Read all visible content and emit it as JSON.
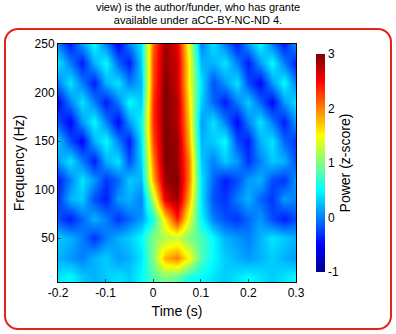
{
  "chart_data": {
    "type": "heatmap",
    "annotations": [
      "view) is the author/funder, who has grante",
      "available under aCC-BY-NC-ND 4."
    ],
    "x_label": "Time (s)",
    "y_label": "Frequency (Hz)",
    "color": "jet",
    "x": [
      -0.2,
      -0.175,
      -0.15,
      -0.125,
      -0.1,
      -0.075,
      -0.05,
      -0.025,
      0,
      0.025,
      0.05,
      0.075,
      0.1,
      0.125,
      0.15,
      0.175,
      0.2,
      0.225,
      0.25,
      0.275,
      0.3
    ],
    "y": [
      10,
      30,
      50,
      70,
      90,
      110,
      130,
      150,
      170,
      190,
      210,
      230,
      250
    ],
    "z": [
      [
        0.4,
        0.5,
        0.3,
        0.2,
        0.3,
        0.4,
        0.3,
        0.5,
        0.8,
        1.0,
        0.9,
        0.6,
        0.5,
        0.4,
        0.3,
        0.4,
        0.5,
        0.4,
        0.3,
        0.4,
        0.5
      ],
      [
        0.2,
        0.1,
        0.0,
        0.2,
        0.3,
        0.1,
        0.2,
        0.4,
        1.0,
        1.8,
        2.0,
        1.5,
        0.8,
        0.5,
        0.3,
        0.2,
        0.1,
        0.2,
        0.3,
        0.2,
        0.1
      ],
      [
        0.3,
        0.2,
        0.0,
        -0.3,
        0.0,
        0.2,
        0.3,
        0.5,
        1.0,
        1.2,
        1.3,
        1.0,
        0.8,
        0.5,
        0.2,
        0.1,
        0.0,
        0.2,
        0.4,
        0.3,
        0.2
      ],
      [
        -0.2,
        -0.4,
        -0.1,
        0.2,
        0.0,
        -0.3,
        -0.1,
        0.1,
        0.6,
        1.6,
        2.4,
        1.4,
        0.5,
        0.0,
        -0.2,
        -0.3,
        -0.1,
        0.1,
        -0.2,
        -0.4,
        -0.2
      ],
      [
        -0.3,
        0.2,
        0.3,
        -0.2,
        -0.4,
        0.1,
        0.2,
        0.0,
        1.2,
        2.6,
        2.9,
        1.8,
        0.4,
        -0.2,
        -0.3,
        0.0,
        0.2,
        -0.1,
        -0.3,
        0.1,
        0.0
      ],
      [
        -0.4,
        0.0,
        0.4,
        0.1,
        -0.3,
        -0.1,
        0.3,
        0.2,
        1.8,
        2.9,
        3.0,
        2.0,
        0.4,
        -0.1,
        -0.4,
        -0.2,
        0.1,
        0.2,
        -0.2,
        -0.3,
        0.1
      ],
      [
        0.1,
        0.4,
        0.0,
        -0.4,
        0.2,
        0.4,
        -0.2,
        0.3,
        2.0,
        3.0,
        2.9,
        2.0,
        0.3,
        0.0,
        0.3,
        0.1,
        -0.3,
        0.0,
        0.3,
        0.2,
        -0.2
      ],
      [
        0.3,
        -0.2,
        -0.5,
        0.2,
        0.5,
        0.0,
        -0.4,
        0.4,
        2.2,
        3.0,
        2.9,
        1.8,
        0.2,
        0.3,
        0.5,
        -0.2,
        -0.4,
        0.2,
        0.4,
        -0.1,
        -0.3
      ],
      [
        -0.2,
        -0.5,
        0.1,
        0.5,
        0.0,
        -0.5,
        0.1,
        0.5,
        2.3,
        3.0,
        2.8,
        1.7,
        0.1,
        0.4,
        0.0,
        -0.5,
        0.0,
        0.4,
        0.0,
        -0.4,
        0.1
      ],
      [
        -0.5,
        0.0,
        0.4,
        0.0,
        -0.4,
        0.0,
        0.5,
        0.3,
        2.3,
        3.0,
        2.8,
        1.6,
        0.3,
        -0.1,
        -0.4,
        0.0,
        0.3,
        -0.1,
        -0.5,
        0.1,
        0.4
      ],
      [
        0.0,
        0.4,
        0.0,
        -0.4,
        0.2,
        0.4,
        0.0,
        0.2,
        2.2,
        3.0,
        2.7,
        1.5,
        0.4,
        -0.2,
        0.1,
        0.4,
        -0.2,
        -0.5,
        0.1,
        0.5,
        0.0
      ],
      [
        0.4,
        0.0,
        -0.4,
        0.2,
        0.5,
        -0.1,
        -0.4,
        0.3,
        2.2,
        2.9,
        2.7,
        1.5,
        0.2,
        0.2,
        0.4,
        0.0,
        -0.4,
        0.1,
        0.5,
        0.0,
        -0.4
      ],
      [
        0.0,
        -0.4,
        0.1,
        0.5,
        0.0,
        -0.5,
        0.0,
        0.4,
        2.1,
        2.9,
        2.6,
        1.4,
        0.0,
        0.4,
        0.0,
        -0.4,
        0.1,
        0.5,
        0.0,
        -0.4,
        0.1
      ]
    ],
    "xlim": [
      -0.2,
      0.3
    ],
    "xticks": [
      -0.2,
      -0.1,
      0,
      0.1,
      0.2,
      0.3
    ],
    "ylim": [
      5,
      250
    ],
    "yticks": [
      50,
      100,
      150,
      200,
      250
    ],
    "colorbar": {
      "title": "Power (z-score)",
      "range": [
        -1,
        3
      ],
      "ticks": [
        -1,
        0,
        1,
        2,
        3
      ]
    }
  }
}
